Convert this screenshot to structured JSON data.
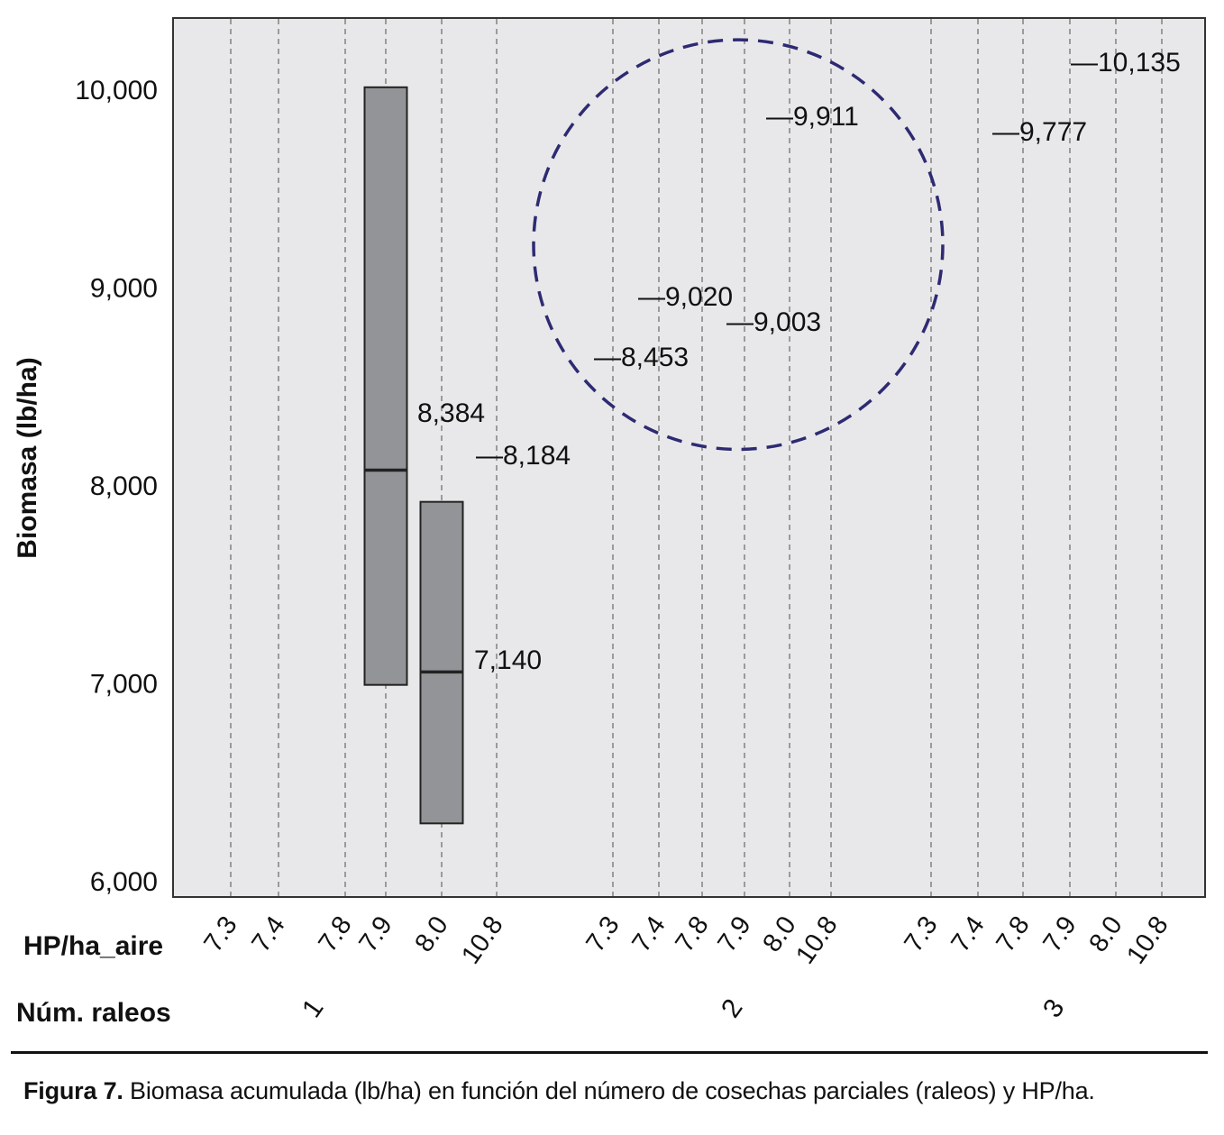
{
  "chart_data": {
    "type": "bar",
    "ylabel": "Biomasa (lb/ha)",
    "ylim": [
      6000,
      10350
    ],
    "yticks": [
      6000,
      7000,
      8000,
      9000,
      10000
    ],
    "ytick_labels": [
      "6,000",
      "7,000",
      "8,000",
      "9,000",
      "10,000"
    ],
    "x_row1_title": "HP/ha_aire",
    "x_row2_title": "Núm. raleos",
    "groups": [
      {
        "label": "1",
        "categories": [
          "7.3",
          "7.4",
          "7.8",
          "7.9",
          "8.0",
          "10.8"
        ]
      },
      {
        "label": "2",
        "categories": [
          "7.3",
          "7.4",
          "7.8",
          "7.9",
          "8.0",
          "10.8"
        ]
      },
      {
        "label": "3",
        "categories": [
          "7.3",
          "7.4",
          "7.8",
          "7.9",
          "8.0",
          "10.8"
        ]
      }
    ],
    "boxes": [
      {
        "group": "1",
        "category": "7.9",
        "low": 6990,
        "high": 10010,
        "median": 8075
      },
      {
        "group": "1",
        "category": "8.0",
        "low": 6290,
        "high": 7915,
        "median": 7055
      }
    ],
    "value_labels": [
      {
        "group": "1",
        "category": "7.9",
        "value": 8384,
        "text": "8,384",
        "dash": false
      },
      {
        "group": "1",
        "category": "10.8",
        "value": 8184,
        "text": "8,184",
        "dash": true
      },
      {
        "group": "1",
        "category": "8.0",
        "value": 7140,
        "text": "7,140",
        "dash": false
      },
      {
        "group": "2",
        "category": "7.3",
        "value": 8453,
        "text": "8,453",
        "dash": true
      },
      {
        "group": "2",
        "category": "7.4",
        "value": 9020,
        "text": "9,020",
        "dash": true
      },
      {
        "group": "2",
        "category": "7.9",
        "value": 9003,
        "text": "9,003",
        "dash": true
      },
      {
        "group": "2",
        "category": "8.0",
        "value": 9911,
        "text": "9,911",
        "dash": true
      },
      {
        "group": "3",
        "category": "7.8",
        "value": 9777,
        "text": "9,777",
        "dash": true
      },
      {
        "group": "3",
        "category": "7.9",
        "value": 10135,
        "text": "10,135",
        "dash": true
      }
    ],
    "highlight_circle": {
      "group": "2",
      "category": "7.9",
      "y_min": 8180,
      "y_max": 10250
    },
    "colors": {
      "plot_bg": "#e8e8ea",
      "box_fill": "#939497",
      "box_stroke": "#222222",
      "grid": "#888888",
      "circle": "#2e2a72",
      "text": "#111111"
    },
    "grid": "vertical-dashed"
  },
  "caption": {
    "label": "Figura 7.",
    "text": "Biomasa acumulada (lb/ha) en función del número de cosechas parciales (raleos) y HP/ha."
  }
}
